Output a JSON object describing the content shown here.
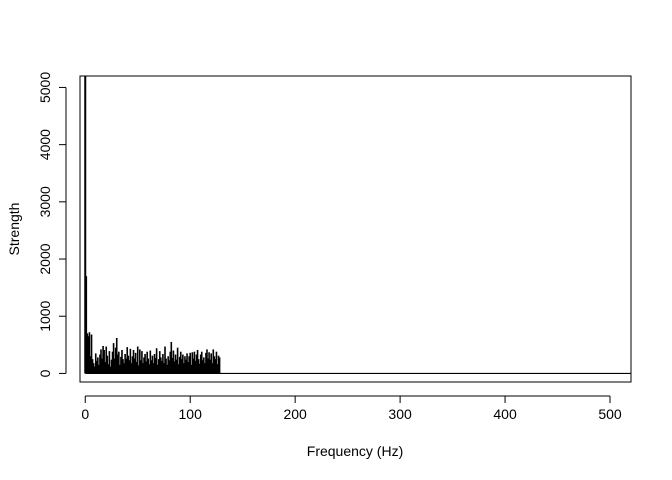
{
  "chart_data": {
    "type": "bar",
    "title": "",
    "xlabel": "Frequency (Hz)",
    "ylabel": "Strength",
    "xlim": [
      -5,
      520
    ],
    "ylim": [
      -150,
      5200
    ],
    "x_ticks": [
      0,
      100,
      200,
      300,
      400,
      500
    ],
    "x_tick_labels": [
      "0",
      "100",
      "200",
      "300",
      "400",
      "500"
    ],
    "y_ticks": [
      0,
      1000,
      2000,
      3000,
      4000,
      5000
    ],
    "y_tick_labels": [
      "0",
      "1000",
      "2000",
      "3000",
      "4000",
      "5000"
    ],
    "grid": false,
    "legend": "none",
    "bar_color": "#000000",
    "baseline_end_x": 520,
    "x": [
      0,
      1,
      2,
      3,
      4,
      5,
      6,
      7,
      8,
      9,
      10,
      11,
      12,
      13,
      14,
      15,
      16,
      17,
      18,
      19,
      20,
      21,
      22,
      23,
      24,
      25,
      26,
      27,
      28,
      29,
      30,
      31,
      32,
      33,
      34,
      35,
      36,
      37,
      38,
      39,
      40,
      41,
      42,
      43,
      44,
      45,
      46,
      47,
      48,
      49,
      50,
      51,
      52,
      53,
      54,
      55,
      56,
      57,
      58,
      59,
      60,
      61,
      62,
      63,
      64,
      65,
      66,
      67,
      68,
      69,
      70,
      71,
      72,
      73,
      74,
      75,
      76,
      77,
      78,
      79,
      80,
      81,
      82,
      83,
      84,
      85,
      86,
      87,
      88,
      89,
      90,
      91,
      92,
      93,
      94,
      95,
      96,
      97,
      98,
      99,
      100,
      101,
      102,
      103,
      104,
      105,
      106,
      107,
      108,
      109,
      110,
      111,
      112,
      113,
      114,
      115,
      116,
      117,
      118,
      119,
      120,
      121,
      122,
      123,
      124,
      125,
      126,
      127,
      128
    ],
    "values": [
      5200,
      1700,
      700,
      650,
      720,
      300,
      680,
      250,
      180,
      120,
      350,
      220,
      280,
      150,
      330,
      420,
      260,
      480,
      410,
      200,
      470,
      310,
      160,
      390,
      120,
      240,
      380,
      530,
      260,
      450,
      620,
      330,
      380,
      150,
      290,
      410,
      250,
      180,
      340,
      260,
      460,
      310,
      230,
      430,
      180,
      300,
      410,
      260,
      360,
      200,
      470,
      140,
      420,
      230,
      390,
      180,
      280,
      340,
      210,
      380,
      260,
      160,
      400,
      230,
      310,
      180,
      340,
      270,
      440,
      150,
      250,
      390,
      280,
      220,
      340,
      180,
      470,
      260,
      150,
      300,
      230,
      380,
      550,
      270,
      400,
      210,
      330,
      240,
      450,
      160,
      290,
      380,
      250,
      330,
      180,
      300,
      240,
      350,
      200,
      300,
      360,
      150,
      370,
      260,
      380,
      220,
      330,
      410,
      250,
      170,
      330,
      380,
      230,
      280,
      180,
      360,
      420,
      260,
      370,
      240,
      350,
      180,
      420,
      300,
      250,
      380,
      160,
      310,
      280
    ]
  }
}
